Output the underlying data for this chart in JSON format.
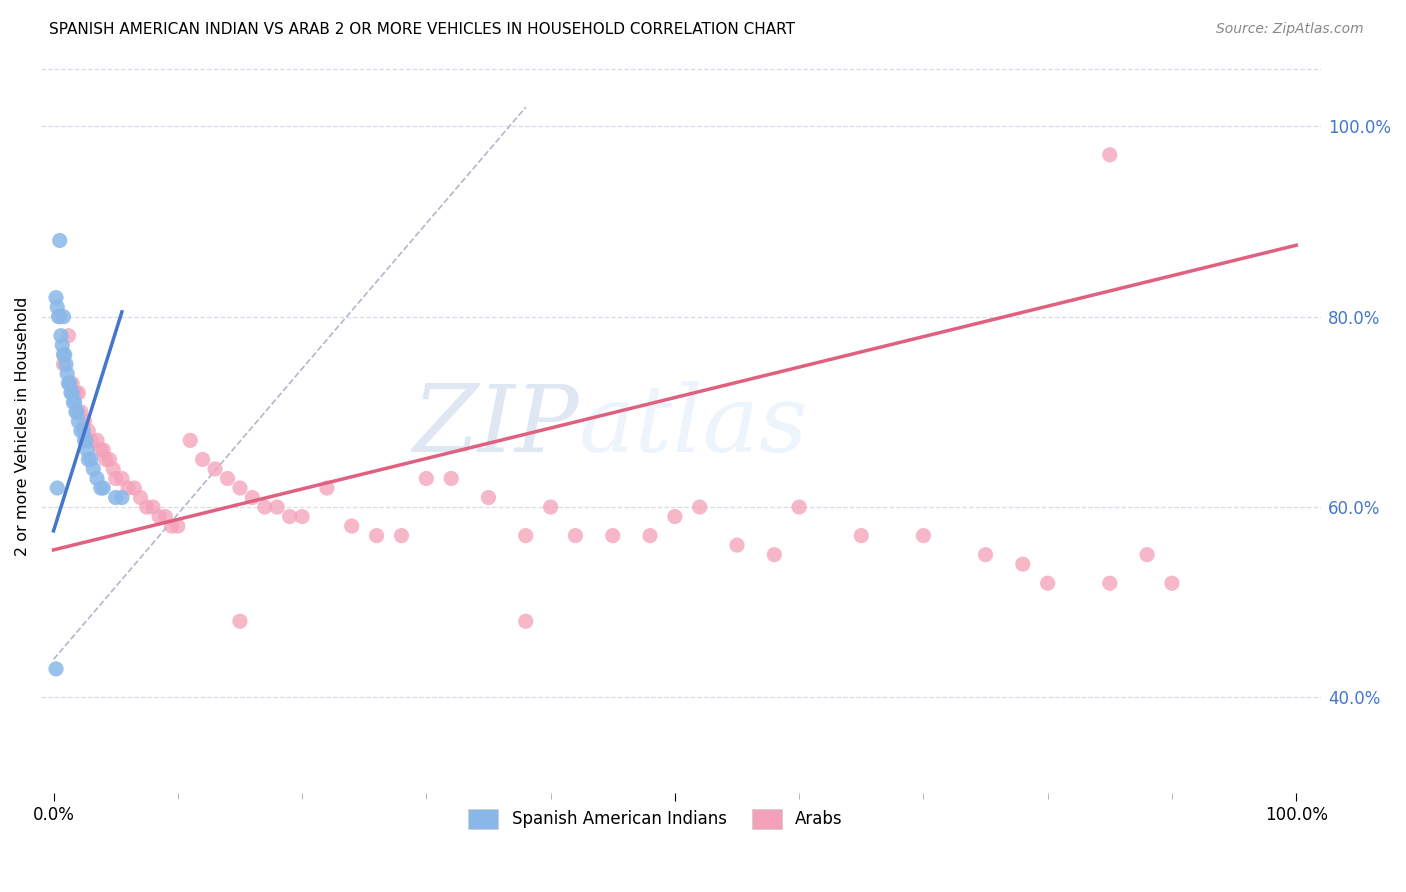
{
  "title": "SPANISH AMERICAN INDIAN VS ARAB 2 OR MORE VEHICLES IN HOUSEHOLD CORRELATION CHART",
  "source": "Source: ZipAtlas.com",
  "ylabel": "2 or more Vehicles in Household",
  "blue_color": "#89b8e8",
  "pink_color": "#f4a0b8",
  "blue_line_color": "#4477cc",
  "pink_line_color": "#e06080",
  "dashed_color": "#b0b8c8",
  "watermark_zip": "ZIP",
  "watermark_atlas": "atlas",
  "background_color": "#ffffff",
  "grid_color": "#d8dce8",
  "blue_scatter_x": [
    0.005,
    0.008,
    0.002,
    0.003,
    0.004,
    0.006,
    0.007,
    0.008,
    0.009,
    0.01,
    0.011,
    0.012,
    0.013,
    0.014,
    0.015,
    0.016,
    0.017,
    0.018,
    0.019,
    0.02,
    0.022,
    0.024,
    0.025,
    0.026,
    0.027,
    0.028,
    0.03,
    0.032,
    0.035,
    0.038,
    0.04,
    0.05,
    0.055,
    0.003,
    0.002
  ],
  "blue_scatter_y": [
    0.88,
    0.8,
    0.82,
    0.81,
    0.8,
    0.78,
    0.77,
    0.76,
    0.76,
    0.75,
    0.74,
    0.73,
    0.73,
    0.72,
    0.72,
    0.71,
    0.71,
    0.7,
    0.7,
    0.69,
    0.68,
    0.68,
    0.67,
    0.67,
    0.66,
    0.65,
    0.65,
    0.64,
    0.63,
    0.62,
    0.62,
    0.61,
    0.61,
    0.62,
    0.43
  ],
  "pink_scatter_x": [
    0.005,
    0.008,
    0.012,
    0.015,
    0.018,
    0.02,
    0.022,
    0.025,
    0.028,
    0.03,
    0.035,
    0.038,
    0.04,
    0.042,
    0.045,
    0.048,
    0.05,
    0.055,
    0.06,
    0.065,
    0.07,
    0.075,
    0.08,
    0.085,
    0.09,
    0.095,
    0.1,
    0.11,
    0.12,
    0.13,
    0.14,
    0.15,
    0.16,
    0.17,
    0.18,
    0.19,
    0.2,
    0.22,
    0.24,
    0.26,
    0.28,
    0.3,
    0.32,
    0.35,
    0.38,
    0.4,
    0.42,
    0.45,
    0.48,
    0.5,
    0.52,
    0.55,
    0.58,
    0.6,
    0.65,
    0.7,
    0.75,
    0.78,
    0.8,
    0.85,
    0.88,
    0.9,
    0.38,
    0.15,
    0.85
  ],
  "pink_scatter_y": [
    0.8,
    0.75,
    0.78,
    0.73,
    0.72,
    0.72,
    0.7,
    0.69,
    0.68,
    0.67,
    0.67,
    0.66,
    0.66,
    0.65,
    0.65,
    0.64,
    0.63,
    0.63,
    0.62,
    0.62,
    0.61,
    0.6,
    0.6,
    0.59,
    0.59,
    0.58,
    0.58,
    0.67,
    0.65,
    0.64,
    0.63,
    0.62,
    0.61,
    0.6,
    0.6,
    0.59,
    0.59,
    0.62,
    0.58,
    0.57,
    0.57,
    0.63,
    0.63,
    0.61,
    0.57,
    0.6,
    0.57,
    0.57,
    0.57,
    0.59,
    0.6,
    0.56,
    0.55,
    0.6,
    0.57,
    0.57,
    0.55,
    0.54,
    0.52,
    0.52,
    0.55,
    0.52,
    0.48,
    0.48,
    0.97
  ],
  "blue_line_x": [
    0.0,
    0.055
  ],
  "blue_line_y": [
    0.575,
    0.805
  ],
  "pink_line_x": [
    0.0,
    1.0
  ],
  "pink_line_y": [
    0.555,
    0.875
  ],
  "dashed_line_x": [
    0.0,
    0.38
  ],
  "dashed_line_y": [
    0.44,
    1.02
  ],
  "xmin": 0.0,
  "xmax": 1.0,
  "ymin": 0.3,
  "ymax": 1.07,
  "right_ytick_vals": [
    0.4,
    0.6,
    0.8,
    1.0
  ],
  "right_ytick_labels": [
    "40.0%",
    "60.0%",
    "80.0%",
    "100.0%"
  ]
}
